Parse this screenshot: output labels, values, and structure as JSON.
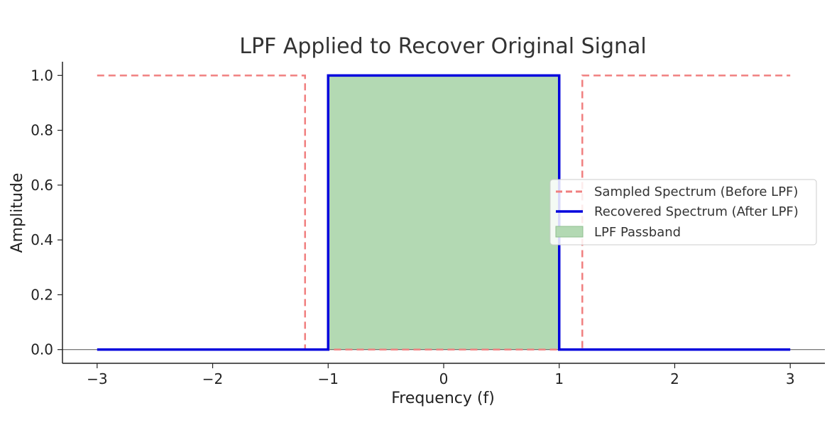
{
  "chart_data": {
    "type": "line",
    "title": "LPF Applied to Recover Original Signal",
    "xlabel": "Frequency (f)",
    "ylabel": "Amplitude",
    "xlim": [
      -3.3,
      3.3
    ],
    "ylim": [
      -0.05,
      1.05
    ],
    "xticks": [
      -3,
      -2,
      -1,
      0,
      1,
      2,
      3
    ],
    "xtick_labels": [
      "−3",
      "−2",
      "−1",
      "0",
      "1",
      "2",
      "3"
    ],
    "yticks": [
      0.0,
      0.2,
      0.4,
      0.6,
      0.8,
      1.0
    ],
    "ytick_labels": [
      "0.0",
      "0.2",
      "0.4",
      "0.6",
      "0.8",
      "1.0"
    ],
    "grid": false,
    "legend_position": "center-right",
    "series": [
      {
        "name": "Sampled Spectrum (Before LPF)",
        "style": "dashed",
        "color": "#f08080",
        "x": [
          -3,
          -1.2,
          -1.2,
          1.2,
          1.2,
          3
        ],
        "y": [
          1,
          1,
          0,
          0,
          1,
          1
        ]
      },
      {
        "name": "Recovered Spectrum (After LPF)",
        "style": "solid",
        "color": "#0000dd",
        "x": [
          -3,
          -1,
          -1,
          1,
          1,
          3
        ],
        "y": [
          0,
          0,
          1,
          1,
          0,
          0
        ]
      }
    ],
    "fills": [
      {
        "name": "LPF Passband",
        "color": "#b3d9b3",
        "x_range": [
          -1,
          1
        ],
        "y_range": [
          0,
          1
        ]
      }
    ],
    "baseline_y": 0
  }
}
